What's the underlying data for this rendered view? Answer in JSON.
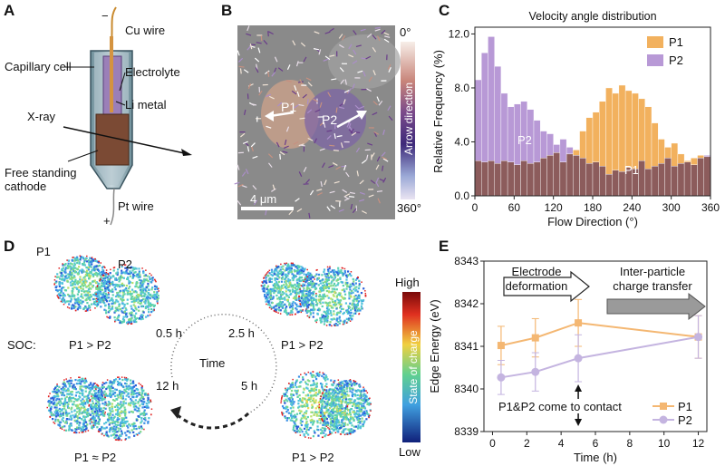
{
  "panels": {
    "a": "A",
    "b": "B",
    "c": "C",
    "d": "D",
    "e": "E"
  },
  "panel_a": {
    "cu_wire": "Cu wire",
    "capillary_cell": "Capillary cell",
    "electrolyte": "Electrolyte",
    "li_metal": "Li metal",
    "x_ray": "X-ray",
    "free_standing_cathode": "Free standing\ncathode",
    "pt_wire": "Pt wire",
    "minus": "−",
    "plus": "+"
  },
  "panel_b": {
    "p1": "P1",
    "p2": "P2",
    "scale_bar": "4 μm",
    "colorbar_top": "0°",
    "colorbar_bottom": "360°",
    "colorbar_label": "Arrow direction"
  },
  "panel_d": {
    "p1": "P1",
    "p2": "P2",
    "soc_label": "SOC:",
    "cond_top_left": "P1 > P2",
    "cond_top_right": "P1 > P2",
    "cond_bottom_left": "P1 ≈ P2",
    "cond_bottom_right": "P1 > P2",
    "t_05": "0.5 h",
    "t_25": "2.5 h",
    "t_5": "5 h",
    "t_12": "12 h",
    "time_label": "Time",
    "colorbar_high": "High",
    "colorbar_low": "Low",
    "colorbar_label": "State of charge"
  },
  "colors": {
    "p1_orange": "#f2b15e",
    "p2_purple": "#b899d6",
    "overlap_brown": "#8c5c5c",
    "line_p1": "#f4b772",
    "line_p2": "#c4b4e0"
  },
  "chart_data": [
    {
      "type": "bar",
      "title": "Velocity angle distribution",
      "xlabel": "Flow Direction (°)",
      "ylabel": "Relative Frequency (%)",
      "xlim": [
        0,
        360
      ],
      "ylim": [
        0,
        12.5
      ],
      "xticks": [
        "0",
        "60",
        "120",
        "180",
        "240",
        "300",
        "360"
      ],
      "yticks": [
        "0.0",
        "4.0",
        "8.0",
        "12.0"
      ],
      "bin_width": 10,
      "legend": [
        "P1",
        "P2"
      ],
      "series_labels": {
        "p1": "P1",
        "p2": "P2"
      },
      "series": [
        {
          "name": "P1",
          "values": [
            2.6,
            2.5,
            2.6,
            2.4,
            2.6,
            2.5,
            2.3,
            2.6,
            2.4,
            2.5,
            2.8,
            3.0,
            3.2,
            2.5,
            3.1,
            3.4,
            4.8,
            5.8,
            6.2,
            7.0,
            8.0,
            7.6,
            8.2,
            7.8,
            7.6,
            7.2,
            6.6,
            5.4,
            4.2,
            3.6,
            3.9,
            3.1,
            2.6,
            2.8,
            3.0,
            2.9
          ]
        },
        {
          "name": "P2",
          "values": [
            8.6,
            10.6,
            11.8,
            9.6,
            7.6,
            6.6,
            6.8,
            7.0,
            6.4,
            5.6,
            4.8,
            4.6,
            3.8,
            4.2,
            3.6,
            3.0,
            2.8,
            2.4,
            2.5,
            2.2,
            1.6,
            1.9,
            1.8,
            2.1,
            2.0,
            2.6,
            2.0,
            2.2,
            2.4,
            2.8,
            2.2,
            2.4,
            2.5,
            2.3,
            2.8,
            3.0
          ]
        }
      ]
    },
    {
      "type": "line",
      "xlabel": "Time (h)",
      "ylabel": "Edge Energy (eV)",
      "xlim": [
        -0.5,
        12.5
      ],
      "ylim": [
        8339,
        8343
      ],
      "xticks": [
        "0",
        "2",
        "4",
        "6",
        "8",
        "10",
        "12"
      ],
      "yticks": [
        "8339",
        "8340",
        "8341",
        "8342",
        "8343"
      ],
      "legend": [
        "P1",
        "P2"
      ],
      "x": [
        0.5,
        2.5,
        5,
        12
      ],
      "series": [
        {
          "name": "P1",
          "values": [
            8341.02,
            8341.2,
            8341.55,
            8341.22
          ],
          "error": [
            0.45,
            0.45,
            0.55,
            0.5
          ]
        },
        {
          "name": "P2",
          "values": [
            8340.27,
            8340.4,
            8340.72,
            8341.22
          ],
          "error": [
            0.4,
            0.45,
            0.55,
            0.5
          ]
        }
      ],
      "annotations": {
        "electrode": "Electrode\ndeformation",
        "charge": "Inter-particle\ncharge transfer",
        "contact": "P1&P2 come to contact"
      }
    }
  ]
}
